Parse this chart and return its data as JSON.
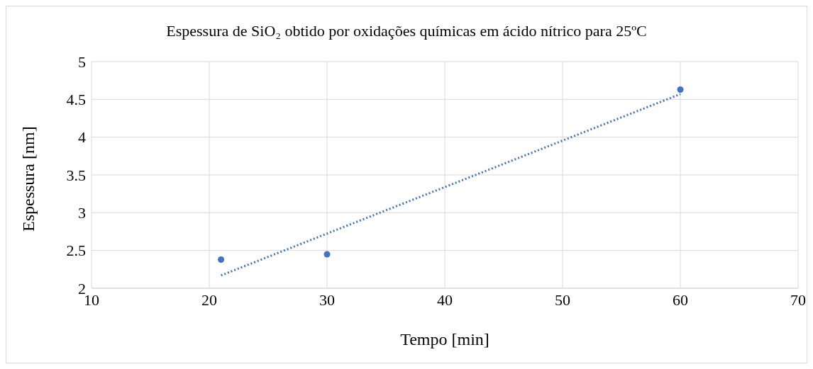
{
  "chart_data": {
    "type": "scatter",
    "title": "Espessura de SiO₂ obtido por oxidações químicas em ácido nítrico para 25ºC",
    "xlabel": "Tempo [min]",
    "ylabel": "Espessura [nm]",
    "xlim": [
      10,
      70
    ],
    "xticks": [
      10,
      20,
      30,
      40,
      50,
      60,
      70
    ],
    "ylim": [
      2,
      5
    ],
    "yticks": [
      2,
      2.5,
      3,
      3.5,
      4,
      4.5,
      5
    ],
    "grid": true,
    "marker": "circle",
    "series": [
      {
        "color": "#4472c4",
        "x": [
          21,
          30,
          60
        ],
        "values": [
          2.38,
          2.45,
          4.63
        ]
      },
      {
        "type": "line",
        "color": "#4472c4",
        "x": [
          21,
          60
        ],
        "values": [
          2.17,
          4.57
        ],
        "marker": "none",
        "line_style": "dotted"
      }
    ]
  }
}
